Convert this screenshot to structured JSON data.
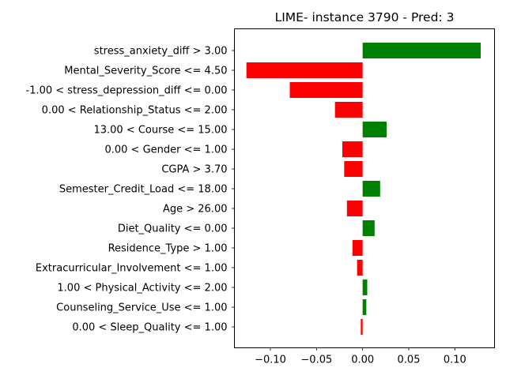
{
  "chart_data": {
    "type": "bar",
    "orientation": "horizontal",
    "title": "LIME- instance 3790 - Pred: 3",
    "xlabel": "",
    "ylabel": "",
    "xlim": [
      -0.139,
      0.143
    ],
    "xticks": [
      -0.1,
      -0.05,
      0.0,
      0.05,
      0.1
    ],
    "xtick_labels": [
      "−0.10",
      "−0.05",
      "0.00",
      "0.05",
      "0.10"
    ],
    "grid": false,
    "legend": "none",
    "colors": {
      "positive": "#008000",
      "negative": "#ff0000"
    },
    "categories": [
      "stress_anxiety_diff > 3.00",
      "Mental_Severity_Score <= 4.50",
      "-1.00 < stress_depression_diff <= 0.00",
      "0.00 < Relationship_Status <= 2.00",
      "13.00 < Course <= 15.00",
      "0.00 < Gender <= 1.00",
      "CGPA > 3.70",
      "Semester_Credit_Load <= 18.00",
      "Age > 26.00",
      "Diet_Quality <= 0.00",
      "Residence_Type > 1.00",
      "Extracurricular_Involvement <= 1.00",
      "1.00 < Physical_Activity <= 2.00",
      "Counseling_Service_Use <= 1.00",
      "0.00 < Sleep_Quality <= 1.00"
    ],
    "values": [
      0.128,
      -0.126,
      -0.079,
      -0.03,
      0.026,
      -0.022,
      -0.02,
      0.019,
      -0.017,
      0.013,
      -0.011,
      -0.006,
      0.005,
      0.004,
      -0.002
    ]
  }
}
